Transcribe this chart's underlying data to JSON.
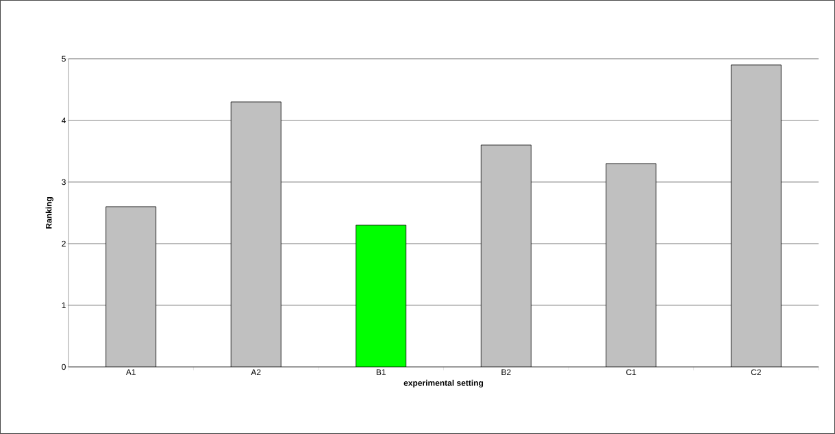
{
  "chart_data": {
    "type": "bar",
    "xlabel": "experimental setting",
    "ylabel": "Ranking",
    "categories": [
      "A1",
      "A2",
      "B1",
      "B2",
      "C1",
      "C2"
    ],
    "values": [
      2.6,
      4.3,
      2.3,
      3.6,
      3.3,
      4.9
    ],
    "colors": [
      "#c0c0c0",
      "#c0c0c0",
      "#00ff00",
      "#c0c0c0",
      "#c0c0c0",
      "#c0c0c0"
    ],
    "ylim": [
      0,
      5
    ],
    "yticks": [
      0,
      1,
      2,
      3,
      4,
      5
    ],
    "grid": "y"
  }
}
